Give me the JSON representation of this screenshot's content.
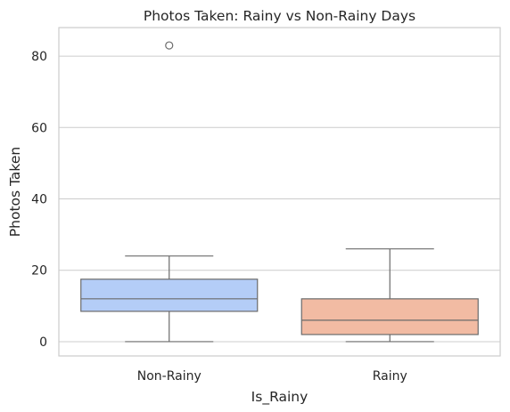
{
  "chart_data": {
    "type": "boxplot",
    "title": "Photos Taken: Rainy vs Non-Rainy Days",
    "xlabel": "Is_Rainy",
    "ylabel": "Photos Taken",
    "categories": [
      "Non-Rainy",
      "Rainy"
    ],
    "ylim": [
      -4,
      88
    ],
    "yticks": [
      0,
      20,
      40,
      60,
      80
    ],
    "grid": "y",
    "boxes": [
      {
        "category": "Non-Rainy",
        "whisker_low": 0,
        "q1": 8.5,
        "median": 12,
        "q3": 17.5,
        "whisker_high": 24,
        "outliers": [
          83
        ],
        "color": "#b4cdf7"
      },
      {
        "category": "Rainy",
        "whisker_low": 0,
        "q1": 2,
        "median": 6,
        "q3": 12,
        "whisker_high": 26,
        "outliers": [],
        "color": "#f2bba3"
      }
    ]
  },
  "colors": {
    "grid": "#cccccc",
    "frame": "#cccccc",
    "box_edge": "#6b6b6b",
    "text": "#262626"
  }
}
